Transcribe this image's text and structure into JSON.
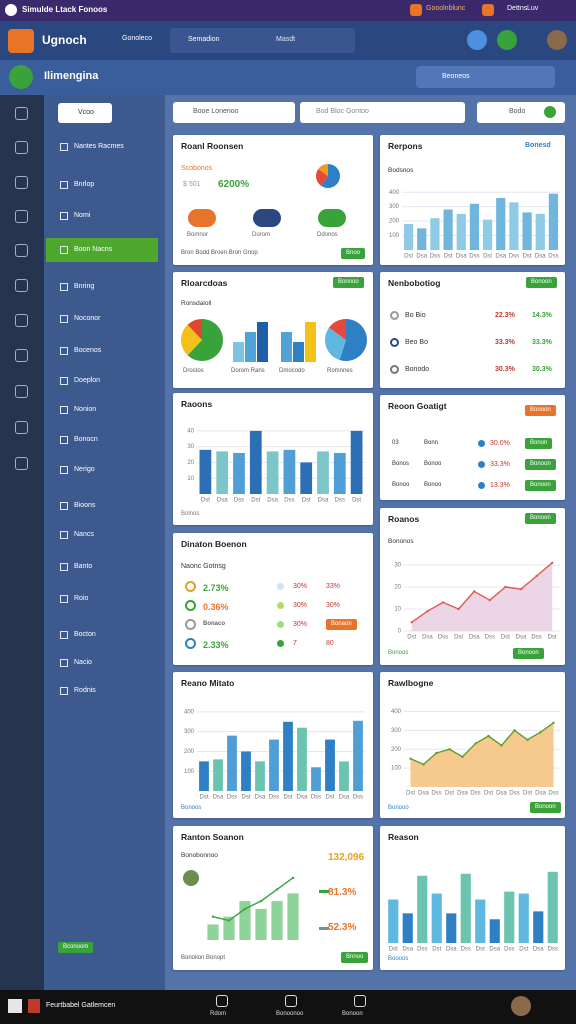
{
  "topbar": {
    "title": "Simulde Ltack Fonoos",
    "links": [
      "Gooolnblunc",
      "Dettns",
      "Luv"
    ]
  },
  "header": {
    "brand": "Ugnoch",
    "nav": "Gonoleco",
    "search": "Semadion",
    "filter": "Masdt"
  },
  "subheader": {
    "title": "Ilimengina",
    "search": "Beoneos"
  },
  "sidebar": {
    "top": "Vcoo",
    "items": [
      "Nantes Racmes",
      "Bnrlop",
      "Nomi",
      "Boon Nacns",
      "Bnring",
      "Noconor",
      "Bocenos",
      "Doeplon",
      "Nonion",
      "Bonocn",
      "Nerigo",
      "Bioons",
      "Nancs",
      "Banto",
      "Roio",
      "Bocton",
      "Nacio",
      "Rodnis"
    ],
    "active": 3,
    "button": "Bconoom"
  },
  "toolbar": {
    "select": "Booe Lonenoo",
    "search": "Bod Bloc Gontoo",
    "filter": "Bodo"
  },
  "left": [
    {
      "title": "Roanl Roonsen",
      "subtitle": "Scobonos",
      "stat_label": "$ 501",
      "stat": "6200%",
      "pie": {
        "values": [
          60,
          25,
          15
        ],
        "colors": [
          "#2f7fc4",
          "#e8483b",
          "#f29a1f"
        ]
      },
      "people": [
        "Bomnor",
        "Dorom",
        "Ddonos"
      ],
      "footer": "Bron Bodd Broen Bron Gnop",
      "button": "Bnoo"
    },
    {
      "title": "Rloarcdoas",
      "button": "Bonnoo",
      "subtitle": "Ronsdaloll",
      "minis": [
        {
          "type": "pie",
          "label": "Drostos",
          "values": [
            62,
            26,
            12
          ],
          "colors": [
            "#3aa23b",
            "#f2c21b",
            "#e0452f"
          ]
        },
        {
          "type": "bar",
          "label": "Dorom Rans",
          "values": [
            2,
            3,
            4
          ],
          "colors": [
            "#7cc3e6",
            "#4fa3d8",
            "#1f5fa8"
          ]
        },
        {
          "type": "bar",
          "label": "Dmocodo",
          "values": [
            3,
            2,
            4
          ],
          "colors": [
            "#4fa3d8",
            "#2f7fc4",
            "#f2c21b"
          ]
        },
        {
          "type": "pie",
          "label": "Romnnes",
          "values": [
            55,
            30,
            15
          ],
          "colors": [
            "#2f7fc4",
            "#5fb8e0",
            "#e8483b"
          ]
        }
      ]
    },
    {
      "title": "Raoons",
      "footer": "Bolnos",
      "chart": {
        "type": "bar",
        "categories": [
          "Dst",
          "Dsa",
          "Dss",
          "Dst",
          "Dsa",
          "Dss",
          "Dst",
          "Dsa",
          "Dss",
          "Dst"
        ],
        "values": [
          28,
          27,
          26,
          40,
          27,
          28,
          20,
          27,
          26,
          40
        ],
        "colors": [
          "#2d6fb6",
          "#7cc6c9",
          "#4f9fd6"
        ],
        "ylim": [
          0,
          45
        ],
        "yticks": [
          10,
          20,
          30,
          40
        ],
        "grid": true
      }
    },
    {
      "title": "Dinaton Boenon",
      "subtitle": "Naonc Gotnsg",
      "rows": [
        [
          "2.73%",
          "30%",
          "33%"
        ],
        [
          "0.36%",
          "30%",
          "30%"
        ],
        [
          "Bonaco",
          "30%",
          "Bonaon"
        ],
        [
          "2.33%",
          "7",
          "80"
        ]
      ]
    },
    {
      "title": "Reano Mitato",
      "footer": "Bonoos",
      "chart": {
        "type": "bar",
        "categories": [
          "Dst",
          "Dsa",
          "Dss",
          "Dst",
          "Dsa",
          "Dss",
          "Dst",
          "Dsa",
          "Dss",
          "Dst",
          "Dsa",
          "Dss"
        ],
        "values": [
          150,
          160,
          280,
          200,
          150,
          260,
          350,
          320,
          120,
          260,
          150,
          355
        ],
        "colors": [
          "#2f7fc4",
          "#6cc4b0",
          "#4f9fd6"
        ],
        "ylim": [
          0,
          450
        ],
        "yticks": [
          100,
          200,
          300,
          400
        ],
        "grid": true
      }
    },
    {
      "title": "Ranton Soanon",
      "subtitle": "Bonobonnoo",
      "stats": [
        "132,096",
        "81.3%",
        "52.3%"
      ],
      "footer": "Bonolion Bonopt",
      "button": "Bnnoo",
      "chart": {
        "type": "combo",
        "bars": [
          2,
          3,
          5,
          4,
          5,
          6
        ],
        "line": [
          3,
          2.5,
          4,
          5,
          6.5,
          8
        ],
        "color": "#8ed39a",
        "line_color": "#3aa23b",
        "ylim": [
          0,
          9
        ]
      }
    }
  ],
  "right": [
    {
      "title": "Rerpons",
      "link": "Bonesd",
      "subtitle": "Bodsnos",
      "chart": {
        "type": "bar",
        "categories": [
          "Dst",
          "Dsa",
          "Dss",
          "Dst",
          "Dsa",
          "Dss",
          "Dst",
          "Dsa",
          "Dss",
          "Dst",
          "Dsa",
          "Dss"
        ],
        "values": [
          180,
          150,
          220,
          280,
          250,
          320,
          210,
          360,
          330,
          260,
          250,
          390
        ],
        "colors": [
          "#8fcbe6",
          "#6fb5dc"
        ],
        "ylim": [
          0,
          450
        ],
        "yticks": [
          100,
          200,
          300,
          400
        ],
        "grid": true
      }
    },
    {
      "title": "Nenbobotiog",
      "button": "Bonoon",
      "rows": [
        [
          "Bo Bio",
          "22.3%",
          "14.3%"
        ],
        [
          "Beo Bo",
          "33.3%",
          "33.3%"
        ],
        [
          "Bonodo",
          "30.3%",
          "30.3%"
        ]
      ]
    },
    {
      "title": "Reoon Goatigt",
      "button": "Bonoon",
      "rows": [
        [
          "03",
          "Bonn",
          "30.0%",
          "Bonon"
        ],
        [
          "Bonos",
          "Bonoo",
          "33.3%",
          "Bonoon"
        ],
        [
          "Bonoo",
          "Bonoo",
          "13.3%",
          "Bonoon"
        ]
      ]
    },
    {
      "title": "Roanos",
      "button": "Bonoon",
      "subtitle": "Bononos",
      "footer": "Bonoos",
      "footer_button": "Bonoon",
      "chart": {
        "type": "area",
        "categories": [
          "Dst",
          "Dsa",
          "Dss",
          "Dst",
          "Dsa",
          "Dss",
          "Dst",
          "Dsa",
          "Dss",
          "Dst"
        ],
        "values": [
          4,
          9,
          13,
          10,
          18,
          14,
          20,
          19,
          25,
          31
        ],
        "color": "#e05a4d",
        "fill": "#ecd5e6",
        "ylim": [
          0,
          35
        ],
        "yticks": [
          0,
          10,
          20,
          30
        ],
        "grid": true
      }
    },
    {
      "title": "Rawlbogne",
      "footer": "Bonooo",
      "footer_button": "Bonoon",
      "chart": {
        "type": "area",
        "categories": [
          "Dst",
          "Dsa",
          "Dss",
          "Dst",
          "Dsa",
          "Dss",
          "Dst",
          "Dsa",
          "Dss",
          "Dst",
          "Dsa",
          "Dss"
        ],
        "values": [
          150,
          120,
          180,
          200,
          160,
          230,
          270,
          220,
          300,
          250,
          290,
          340
        ],
        "color": "#5aa02c",
        "fill": "#f6c98f",
        "ylim": [
          0,
          450
        ],
        "yticks": [
          100,
          200,
          300,
          400
        ],
        "grid": true
      }
    },
    {
      "title": "Reason",
      "footer": "Boooos",
      "chart": {
        "type": "bar",
        "categories": [
          "Dst",
          "Dsa",
          "Dss",
          "Dst",
          "Dsa",
          "Dss",
          "Dst",
          "Dsa",
          "Dss",
          "Dst",
          "Dsa",
          "Dss"
        ],
        "values": [
          220,
          150,
          340,
          250,
          150,
          350,
          220,
          120,
          260,
          250,
          160,
          360
        ],
        "colors": [
          "#5fb8e0",
          "#2f7fc4",
          "#6cc4b0"
        ],
        "ylim": [
          0,
          450
        ],
        "yticks": [],
        "grid": true
      }
    }
  ],
  "taskbar": {
    "title": "Feurtbabel Gatlemcen",
    "apps": [
      "Rdom",
      "Bonoonoo",
      "Bonoon"
    ]
  }
}
